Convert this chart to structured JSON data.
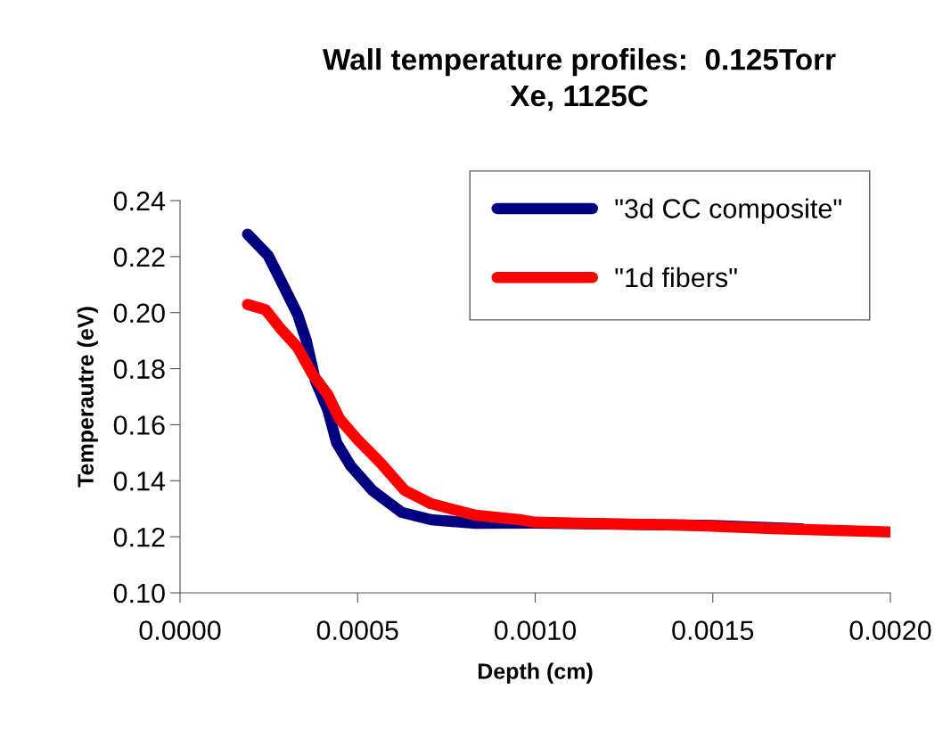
{
  "chart_data": {
    "type": "line",
    "title": "Wall temperature profiles:  0.125Torr\nXe, 1125C",
    "xlabel": "Depth (cm)",
    "ylabel": "Temperautre (eV)",
    "xlim": [
      0,
      0.002
    ],
    "xticks": [
      {
        "value": 0,
        "label": "0.0000"
      },
      {
        "value": 0.0005,
        "label": "0.0005"
      },
      {
        "value": 0.001,
        "label": "0.0010"
      },
      {
        "value": 0.0015,
        "label": "0.0015"
      },
      {
        "value": 0.002,
        "label": "0.0020"
      }
    ],
    "ylim": [
      0.1,
      0.24
    ],
    "yticks": [
      {
        "value": 0.1,
        "label": "0.10"
      },
      {
        "value": 0.12,
        "label": "0.12"
      },
      {
        "value": 0.14,
        "label": "0.14"
      },
      {
        "value": 0.16,
        "label": "0.16"
      },
      {
        "value": 0.18,
        "label": "0.18"
      },
      {
        "value": 0.2,
        "label": "0.20"
      },
      {
        "value": 0.22,
        "label": "0.22"
      },
      {
        "value": 0.24,
        "label": "0.24"
      }
    ],
    "grid": false,
    "legend": "top right",
    "line_style": "solid",
    "series": [
      {
        "name": "\"3d CC composite\"",
        "color": "#000080",
        "x": [
          0.00019,
          0.000248,
          0.000281,
          0.000331,
          0.000356,
          0.000381,
          0.000416,
          0.000441,
          0.000481,
          0.000541,
          0.000624,
          0.000707,
          0.000832,
          0.001,
          0.0015,
          0.00175
        ],
        "values": [
          0.228,
          0.2204,
          0.2121,
          0.1994,
          0.1898,
          0.1758,
          0.1653,
          0.1535,
          0.1452,
          0.1366,
          0.1287,
          0.1261,
          0.1248,
          0.1249,
          0.124,
          0.1228
        ]
      },
      {
        "name": "\"1d fibers\"",
        "color": "#ff0000",
        "x": [
          0.00019,
          0.000241,
          0.000281,
          0.000331,
          0.000373,
          0.000416,
          0.000449,
          0.000499,
          0.000566,
          0.000632,
          0.000707,
          0.000832,
          0.000957,
          0.001,
          0.001125,
          0.001418,
          0.001669,
          0.002
        ],
        "values": [
          0.2029,
          0.201,
          0.1946,
          0.1876,
          0.178,
          0.1707,
          0.1621,
          0.1548,
          0.1462,
          0.1366,
          0.1318,
          0.1277,
          0.1261,
          0.1252,
          0.1248,
          0.1242,
          0.1229,
          0.1217
        ]
      }
    ]
  }
}
